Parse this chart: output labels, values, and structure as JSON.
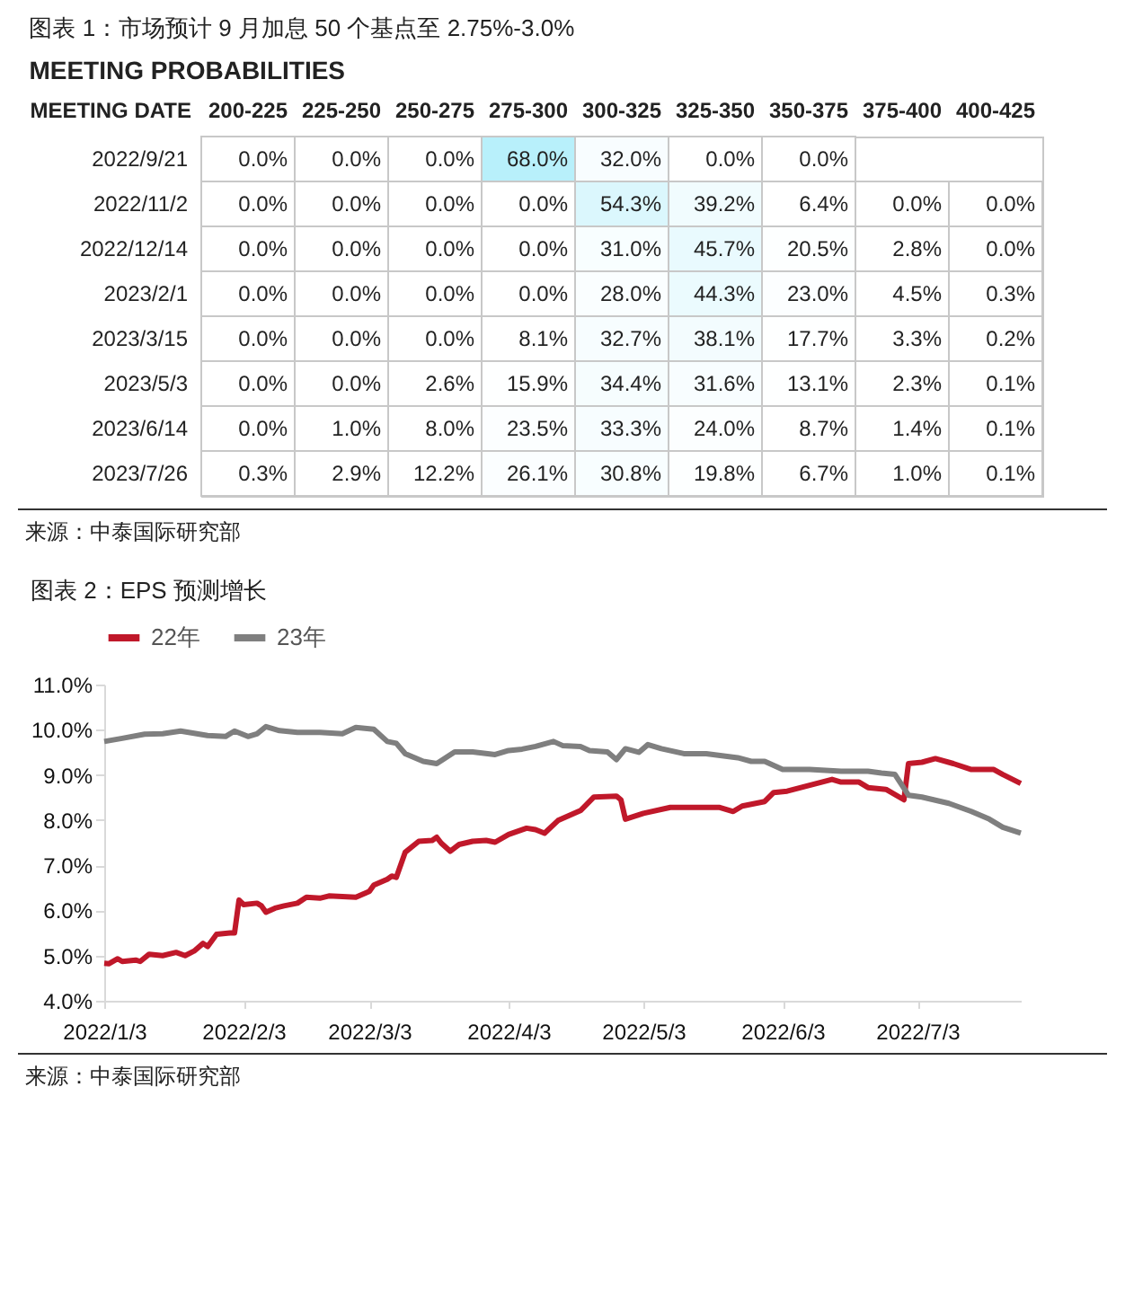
{
  "chart_data": [
    {
      "type": "heatmap",
      "title": "图表 1：市场预计 9 月加息 50 个基点至 2.75%-3.0%",
      "subtitle": "MEETING PROBABILITIES",
      "ylabel": "MEETING DATE",
      "categories": [
        "200-225",
        "225-250",
        "250-275",
        "275-300",
        "300-325",
        "325-350",
        "350-375",
        "375-400",
        "400-425"
      ],
      "y_categories": [
        "2022/9/21",
        "2022/11/2",
        "2022/12/14",
        "2023/2/1",
        "2023/3/15",
        "2023/5/3",
        "2023/6/14",
        "2023/7/26"
      ],
      "cells": [
        [
          0.0,
          0.0,
          0.0,
          68.0,
          32.0,
          0.0,
          0.0,
          null,
          null
        ],
        [
          0.0,
          0.0,
          0.0,
          0.0,
          54.3,
          39.2,
          6.4,
          0.0,
          0.0
        ],
        [
          0.0,
          0.0,
          0.0,
          0.0,
          31.0,
          45.7,
          20.5,
          2.8,
          0.0
        ],
        [
          0.0,
          0.0,
          0.0,
          0.0,
          28.0,
          44.3,
          23.0,
          4.5,
          0.3
        ],
        [
          0.0,
          0.0,
          0.0,
          8.1,
          32.7,
          38.1,
          17.7,
          3.3,
          0.2
        ],
        [
          0.0,
          0.0,
          2.6,
          15.9,
          34.4,
          31.6,
          13.1,
          2.3,
          0.1
        ],
        [
          0.0,
          1.0,
          8.0,
          23.5,
          33.3,
          24.0,
          8.7,
          1.4,
          0.1
        ],
        [
          0.3,
          2.9,
          12.2,
          26.1,
          30.8,
          19.8,
          6.7,
          1.0,
          0.1
        ]
      ],
      "cell_labels": [
        [
          "0.0%",
          "0.0%",
          "0.0%",
          "68.0%",
          "32.0%",
          "0.0%",
          "0.0%",
          null,
          null
        ],
        [
          "0.0%",
          "0.0%",
          "0.0%",
          "0.0%",
          "54.3%",
          "39.2%",
          "6.4%",
          "0.0%",
          "0.0%"
        ],
        [
          "0.0%",
          "0.0%",
          "0.0%",
          "0.0%",
          "31.0%",
          "45.7%",
          "20.5%",
          "2.8%",
          "0.0%"
        ],
        [
          "0.0%",
          "0.0%",
          "0.0%",
          "0.0%",
          "28.0%",
          "44.3%",
          "23.0%",
          "4.5%",
          "0.3%"
        ],
        [
          "0.0%",
          "0.0%",
          "0.0%",
          "8.1%",
          "32.7%",
          "38.1%",
          "17.7%",
          "3.3%",
          "0.2%"
        ],
        [
          "0.0%",
          "0.0%",
          "2.6%",
          "15.9%",
          "34.4%",
          "31.6%",
          "13.1%",
          "2.3%",
          "0.1%"
        ],
        [
          "0.0%",
          "1.0%",
          "8.0%",
          "23.5%",
          "33.3%",
          "24.0%",
          "8.7%",
          "1.4%",
          "0.1%"
        ],
        [
          "0.3%",
          "2.9%",
          "12.2%",
          "26.1%",
          "30.8%",
          "19.8%",
          "6.7%",
          "1.0%",
          "0.1%"
        ]
      ],
      "annotations": [
        "来源：中泰国际研究部"
      ]
    },
    {
      "type": "line",
      "title": "图表 2：EPS 预测增长",
      "legend": "top",
      "xlim": [
        "2022-01-03",
        "2022-07-26"
      ],
      "xticks": [
        {
          "value": "2022-01-03",
          "label": "2022/1/3"
        },
        {
          "value": "2022-02-03",
          "label": "2022/2/3"
        },
        {
          "value": "2022-03-03",
          "label": "2022/3/3"
        },
        {
          "value": "2022-04-03",
          "label": "2022/4/3"
        },
        {
          "value": "2022-05-03",
          "label": "2022/5/3"
        },
        {
          "value": "2022-06-03",
          "label": "2022/6/3"
        },
        {
          "value": "2022-07-03",
          "label": "2022/7/3"
        }
      ],
      "ylim": [
        4,
        11
      ],
      "yticks": [
        {
          "value": 4,
          "label": "4.0%"
        },
        {
          "value": 5,
          "label": "5.0%"
        },
        {
          "value": 6,
          "label": "6.0%"
        },
        {
          "value": 7,
          "label": "7.0%"
        },
        {
          "value": 8,
          "label": "8.0%"
        },
        {
          "value": 9,
          "label": "9.0%"
        },
        {
          "value": 10,
          "label": "10.0%"
        },
        {
          "value": 11,
          "label": "11.0%"
        }
      ],
      "series": [
        {
          "name": "22年",
          "color": "#c0182a",
          "x": [
            "2022-01-03",
            "2022-01-04",
            "2022-01-06",
            "2022-01-07",
            "2022-01-10",
            "2022-01-11",
            "2022-01-13",
            "2022-01-16",
            "2022-01-19",
            "2022-01-21",
            "2022-01-23",
            "2022-01-25",
            "2022-01-26",
            "2022-01-28",
            "2022-01-31",
            "2022-02-01",
            "2022-02-02",
            "2022-02-03",
            "2022-02-06",
            "2022-02-07",
            "2022-02-08",
            "2022-02-10",
            "2022-02-12",
            "2022-02-15",
            "2022-02-17",
            "2022-02-20",
            "2022-02-22",
            "2022-02-28",
            "2022-03-03",
            "2022-03-04",
            "2022-03-07",
            "2022-03-08",
            "2022-03-09",
            "2022-03-11",
            "2022-03-14",
            "2022-03-17",
            "2022-03-18",
            "2022-03-19",
            "2022-03-21",
            "2022-03-23",
            "2022-03-26",
            "2022-03-29",
            "2022-03-31",
            "2022-04-03",
            "2022-04-07",
            "2022-04-09",
            "2022-04-11",
            "2022-04-14",
            "2022-04-19",
            "2022-04-22",
            "2022-04-27",
            "2022-04-28",
            "2022-04-29",
            "2022-05-03",
            "2022-05-09",
            "2022-05-14",
            "2022-05-20",
            "2022-05-23",
            "2022-05-25",
            "2022-05-30",
            "2022-06-01",
            "2022-06-04",
            "2022-06-09",
            "2022-06-14",
            "2022-06-16",
            "2022-06-20",
            "2022-06-22",
            "2022-06-26",
            "2022-06-30",
            "2022-07-01",
            "2022-07-04",
            "2022-07-07",
            "2022-07-11",
            "2022-07-15",
            "2022-07-20",
            "2022-07-22",
            "2022-07-26"
          ],
          "values": [
            4.83,
            4.82,
            4.93,
            4.87,
            4.9,
            4.87,
            5.03,
            5.0,
            5.07,
            5.0,
            5.1,
            5.27,
            5.2,
            5.47,
            5.5,
            5.5,
            6.23,
            6.13,
            6.16,
            6.1,
            5.96,
            6.05,
            6.1,
            6.16,
            6.29,
            6.27,
            6.32,
            6.29,
            6.42,
            6.56,
            6.69,
            6.76,
            6.73,
            7.29,
            7.53,
            7.55,
            7.62,
            7.49,
            7.31,
            7.46,
            7.53,
            7.55,
            7.51,
            7.68,
            7.82,
            7.79,
            7.71,
            7.99,
            8.21,
            8.51,
            8.53,
            8.45,
            8.02,
            8.15,
            8.28,
            8.28,
            8.28,
            8.19,
            8.31,
            8.41,
            8.61,
            8.64,
            8.77,
            8.9,
            8.84,
            8.84,
            8.72,
            8.68,
            8.45,
            9.25,
            9.28,
            9.36,
            9.25,
            9.12,
            9.12,
            9.01,
            8.81
          ]
        },
        {
          "name": "23年",
          "color": "#7f7f7f",
          "x": [
            "2022-01-03",
            "2022-01-07",
            "2022-01-12",
            "2022-01-16",
            "2022-01-20",
            "2022-01-26",
            "2022-01-30",
            "2022-02-01",
            "2022-02-04",
            "2022-02-06",
            "2022-02-08",
            "2022-02-11",
            "2022-02-15",
            "2022-02-20",
            "2022-02-25",
            "2022-02-28",
            "2022-03-04",
            "2022-03-07",
            "2022-03-09",
            "2022-03-11",
            "2022-03-15",
            "2022-03-18",
            "2022-03-22",
            "2022-03-26",
            "2022-03-31",
            "2022-04-03",
            "2022-04-06",
            "2022-04-09",
            "2022-04-13",
            "2022-04-15",
            "2022-04-19",
            "2022-04-21",
            "2022-04-25",
            "2022-04-27",
            "2022-04-29",
            "2022-05-02",
            "2022-05-04",
            "2022-05-07",
            "2022-05-12",
            "2022-05-17",
            "2022-05-24",
            "2022-05-27",
            "2022-05-30",
            "2022-06-03",
            "2022-06-09",
            "2022-06-16",
            "2022-06-22",
            "2022-06-25",
            "2022-06-28",
            "2022-07-01",
            "2022-07-04",
            "2022-07-10",
            "2022-07-15",
            "2022-07-19",
            "2022-07-22",
            "2022-07-26"
          ],
          "values": [
            9.74,
            9.81,
            9.9,
            9.91,
            9.97,
            9.87,
            9.85,
            9.97,
            9.85,
            9.91,
            10.07,
            9.98,
            9.94,
            9.94,
            9.91,
            10.05,
            10.01,
            9.74,
            9.7,
            9.47,
            9.3,
            9.25,
            9.51,
            9.51,
            9.45,
            9.54,
            9.57,
            9.63,
            9.74,
            9.65,
            9.63,
            9.54,
            9.51,
            9.34,
            9.58,
            9.5,
            9.67,
            9.58,
            9.47,
            9.47,
            9.38,
            9.3,
            9.3,
            9.12,
            9.12,
            9.08,
            9.08,
            9.04,
            9.01,
            8.55,
            8.51,
            8.37,
            8.19,
            8.02,
            7.84,
            7.71
          ]
        }
      ],
      "annotations": [
        "来源：中泰国际研究部"
      ]
    }
  ]
}
